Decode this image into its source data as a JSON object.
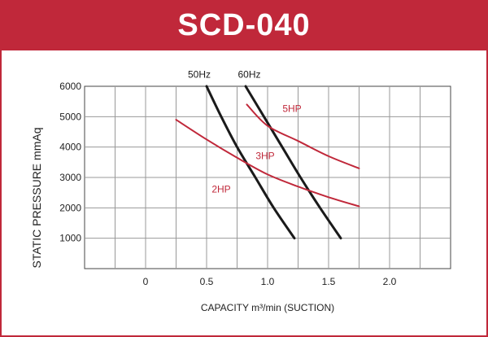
{
  "title": "SCD-040",
  "chart_data": {
    "type": "line",
    "xlabel": "CAPACITY m³/min (SUCTION)",
    "ylabel": "STATIC PRESSURE mmAq",
    "xlim": [
      -0.5,
      2.5
    ],
    "ylim": [
      0,
      6000
    ],
    "x_ticks": [
      0,
      0.5,
      1.0,
      1.5,
      2.0
    ],
    "x_tick_labels": [
      "0",
      "0.5",
      "1.0",
      "1.5",
      "2.0"
    ],
    "y_ticks": [
      1000,
      2000,
      3000,
      4000,
      5000,
      6000
    ],
    "y_tick_labels": [
      "1000",
      "2000",
      "3000",
      "4000",
      "5000",
      "6000"
    ],
    "grid": true,
    "series": [
      {
        "name": "50Hz",
        "color": "#1a1a1a",
        "x": [
          0.5,
          0.62,
          0.75,
          0.9,
          1.05,
          1.22
        ],
        "y": [
          6000,
          5000,
          4000,
          3000,
          2000,
          1000
        ],
        "label_at": [
          0.44,
          6280
        ]
      },
      {
        "name": "60Hz",
        "color": "#1a1a1a",
        "x": [
          0.82,
          0.97,
          1.12,
          1.27,
          1.43,
          1.6
        ],
        "y": [
          6000,
          5000,
          4000,
          3000,
          2000,
          1000
        ],
        "label_at": [
          0.85,
          6280
        ]
      },
      {
        "name": "5HP",
        "color": "#c0283a",
        "x": [
          0.83,
          1.0,
          1.25,
          1.5,
          1.75
        ],
        "y": [
          5400,
          4700,
          4200,
          3700,
          3300
        ],
        "label_at": [
          1.2,
          5150
        ]
      },
      {
        "name": "3HP",
        "color": "#c0283a",
        "x": [
          0.25,
          0.5,
          0.75,
          1.0,
          1.25,
          1.5,
          1.75
        ],
        "y": [
          4900,
          4250,
          3650,
          3100,
          2700,
          2350,
          2050
        ],
        "label_at": [
          0.98,
          3600
        ]
      },
      {
        "name": "2HP",
        "color": "#c0283a",
        "label_at": [
          0.62,
          2500
        ]
      }
    ]
  }
}
